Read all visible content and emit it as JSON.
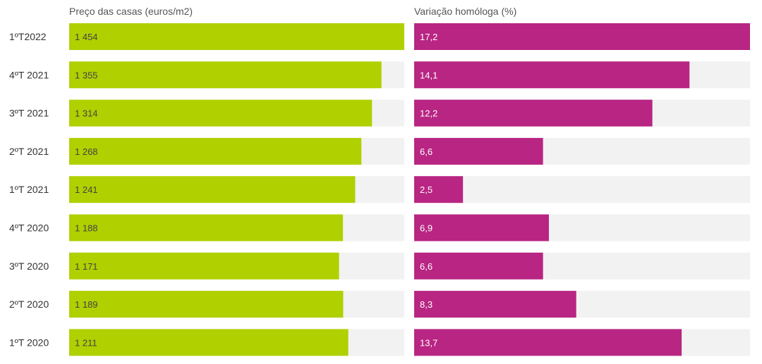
{
  "colors": {
    "price_bar": "#b0d000",
    "variation_bar": "#b82582",
    "track": "#f2f2f2"
  },
  "chart_data": [
    {
      "type": "bar",
      "orientation": "horizontal",
      "title": "Preço das casas (euros/m2)",
      "categories": [
        "1ºT2022",
        "4ºT 2021",
        "3ºT 2021",
        "2ºT 2021",
        "1ºT 2021",
        "4ºT 2020",
        "3ºT 2020",
        "2ºT 2020",
        "1ºT 2020"
      ],
      "values": [
        1454,
        1355,
        1314,
        1268,
        1241,
        1188,
        1171,
        1189,
        1211
      ],
      "value_labels": [
        "1 454",
        "1 355",
        "1 314",
        "1 268",
        "1 241",
        "1 188",
        "1 171",
        "1 189",
        "1 211"
      ],
      "xlim": [
        0,
        1454
      ]
    },
    {
      "type": "bar",
      "orientation": "horizontal",
      "title": "Variação homóloga (%)",
      "categories": [
        "1ºT2022",
        "4ºT 2021",
        "3ºT 2021",
        "2ºT 2021",
        "1ºT 2021",
        "4ºT 2020",
        "3ºT 2020",
        "2ºT 2020",
        "1ºT 2020"
      ],
      "values": [
        17.2,
        14.1,
        12.2,
        6.6,
        2.5,
        6.9,
        6.6,
        8.3,
        13.7
      ],
      "value_labels": [
        "17,2",
        "14,1",
        "12,2",
        "6,6",
        "2,5",
        "6,9",
        "6,6",
        "8,3",
        "13,7"
      ],
      "xlim": [
        0,
        17.2
      ]
    }
  ]
}
